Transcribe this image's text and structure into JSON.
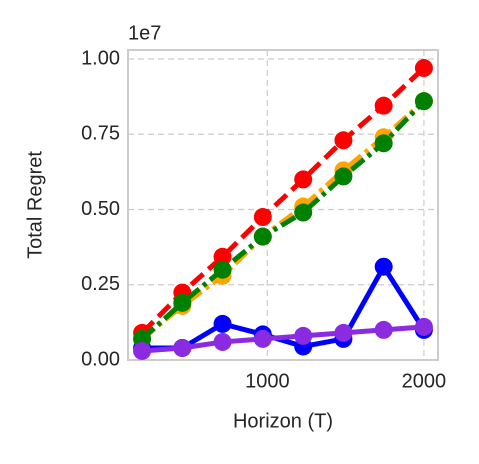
{
  "chart_data": {
    "type": "line",
    "xlabel": "Horizon (T)",
    "ylabel": "Total Regret",
    "offset_label": "1e7",
    "x": [
      200,
      457,
      714,
      971,
      1229,
      1486,
      1743,
      2000
    ],
    "series": [
      {
        "color": "#0000ff",
        "dash": "solid",
        "values": [
          0.04,
          0.04,
          0.12,
          0.085,
          0.045,
          0.07,
          0.31,
          0.1
        ]
      },
      {
        "color": "#ff0000",
        "dash": "dashed",
        "values": [
          0.09,
          0.224,
          0.343,
          0.475,
          0.6,
          0.73,
          0.845,
          0.97
        ]
      },
      {
        "color": "#ffa500",
        "dash": "dashdot",
        "values": [
          0.07,
          0.18,
          0.28,
          0.41,
          0.51,
          0.63,
          0.74,
          0.86
        ]
      },
      {
        "color": "#008000",
        "dash": "dashdot",
        "values": [
          0.07,
          0.19,
          0.3,
          0.41,
          0.49,
          0.61,
          0.72,
          0.86
        ]
      },
      {
        "color": "#8a2be2",
        "dash": "solid",
        "values": [
          0.03,
          0.04,
          0.06,
          0.07,
          0.08,
          0.09,
          0.1,
          0.11
        ]
      }
    ],
    "xlim": [
      110,
      2090
    ],
    "xticks": [
      1000,
      2000
    ],
    "ylim": [
      0,
      1.03
    ],
    "yticks": [
      {
        "value": 0,
        "label": "0.00"
      },
      0.25,
      {
        "value": 0.5,
        "label": "0.50"
      },
      0.75,
      {
        "value": 1,
        "label": "1.00"
      }
    ],
    "grid": true
  }
}
